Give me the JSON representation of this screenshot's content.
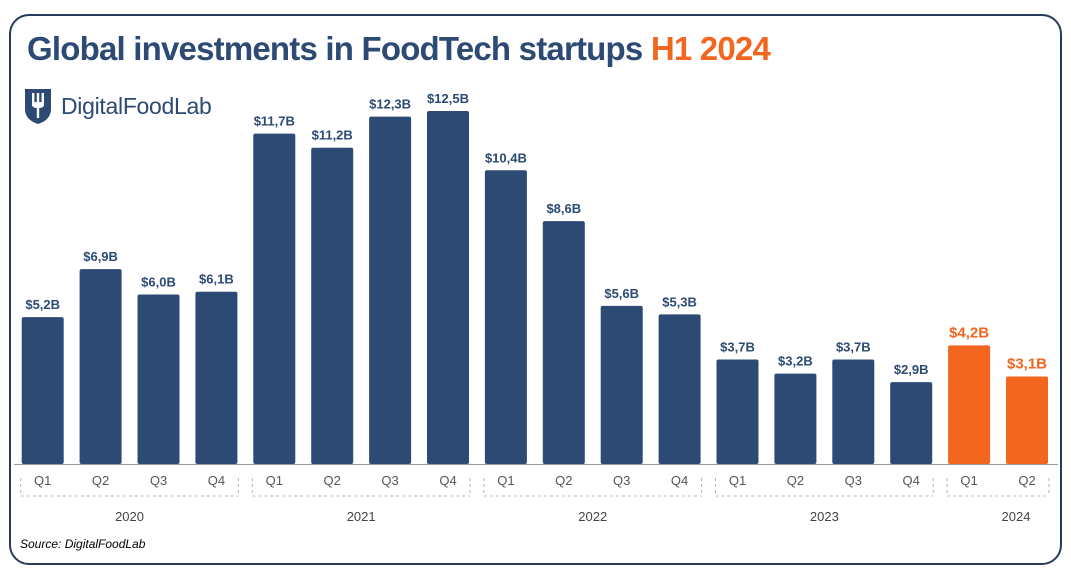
{
  "title": {
    "main": "Global investments in FoodTech startups",
    "highlight": "H1 2024"
  },
  "logo": {
    "text": "DigitalFoodLab",
    "icon": "fork-shield-icon"
  },
  "source": "Source: DigitalFoodLab",
  "colors": {
    "bar": "#2c4a73",
    "highlight": "#f2661f"
  },
  "chart_data": {
    "type": "bar",
    "title": "Global investments in FoodTech startups H1 2024",
    "xlabel": "",
    "ylabel": "",
    "ylim": [
      0,
      12.5
    ],
    "unit": "$B",
    "groups": [
      {
        "year": "2020",
        "quarters": [
          "Q1",
          "Q2",
          "Q3",
          "Q4"
        ]
      },
      {
        "year": "2021",
        "quarters": [
          "Q1",
          "Q2",
          "Q3",
          "Q4"
        ]
      },
      {
        "year": "2022",
        "quarters": [
          "Q1",
          "Q2",
          "Q3",
          "Q4"
        ]
      },
      {
        "year": "2023",
        "quarters": [
          "Q1",
          "Q2",
          "Q3",
          "Q4"
        ]
      },
      {
        "year": "2024",
        "quarters": [
          "Q1",
          "Q2"
        ]
      }
    ],
    "values": [
      5.2,
      6.9,
      6.0,
      6.1,
      11.7,
      11.2,
      12.3,
      12.5,
      10.4,
      8.6,
      5.6,
      5.3,
      3.7,
      3.2,
      3.7,
      2.9,
      4.2,
      3.1
    ],
    "labels": [
      "$5,2B",
      "$6,9B",
      "$6,0B",
      "$6,1B",
      "$11,7B",
      "$11,2B",
      "$12,3B",
      "$12,5B",
      "$10,4B",
      "$8,6B",
      "$5,6B",
      "$5,3B",
      "$3,7B",
      "$3,2B",
      "$3,7B",
      "$2,9B",
      "$4,2B",
      "$3,1B"
    ],
    "highlight_year": "2024",
    "grid": false,
    "legend": "none"
  }
}
